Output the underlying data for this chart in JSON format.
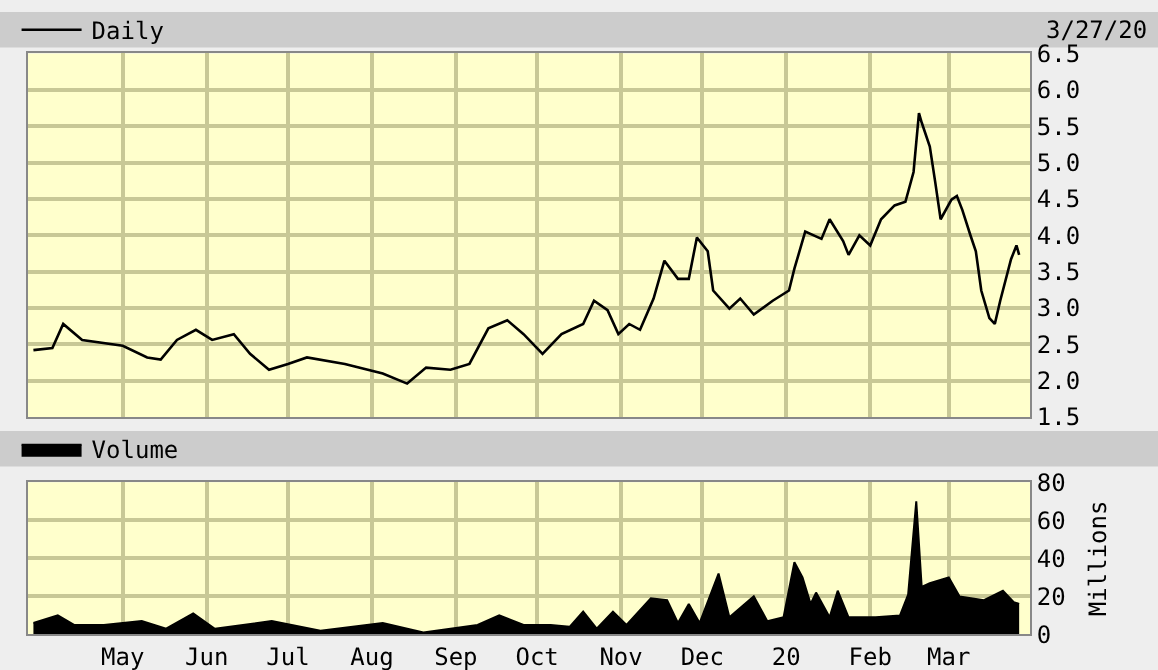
{
  "chart_data": [
    {
      "type": "line",
      "annotations": [
        "3/27/20"
      ],
      "x": [
        "2019-03-29",
        "2019-04-05",
        "2019-04-09",
        "2019-04-16",
        "2019-05-01",
        "2019-05-10",
        "2019-05-15",
        "2019-05-21",
        "2019-05-28",
        "2019-06-03",
        "2019-06-11",
        "2019-06-17",
        "2019-06-24",
        "2019-07-01",
        "2019-07-08",
        "2019-07-22",
        "2019-08-05",
        "2019-08-14",
        "2019-08-21",
        "2019-08-30",
        "2019-09-06",
        "2019-09-13",
        "2019-09-20",
        "2019-09-26",
        "2019-10-03",
        "2019-10-10",
        "2019-10-18",
        "2019-10-22",
        "2019-10-27",
        "2019-10-31",
        "2019-11-04",
        "2019-11-08",
        "2019-11-13",
        "2019-11-17",
        "2019-11-22",
        "2019-11-26",
        "2019-11-29",
        "2019-12-03",
        "2019-12-05",
        "2019-12-11",
        "2019-12-15",
        "2019-12-20",
        "2019-12-27",
        "2020-01-02",
        "2020-01-04",
        "2020-01-08",
        "2020-01-14",
        "2020-01-17",
        "2020-01-22",
        "2020-01-24",
        "2020-01-28",
        "2020-02-01",
        "2020-02-05",
        "2020-02-10",
        "2020-02-14",
        "2020-02-17",
        "2020-02-19",
        "2020-02-20",
        "2020-02-23",
        "2020-02-25",
        "2020-02-27",
        "2020-03-02",
        "2020-03-04",
        "2020-03-06",
        "2020-03-09",
        "2020-03-11",
        "2020-03-13",
        "2020-03-16",
        "2020-03-18",
        "2020-03-20",
        "2020-03-24",
        "2020-03-26",
        "2020-03-27"
      ],
      "series": [
        {
          "name": "Daily",
          "color": "#000000",
          "values": [
            2.42,
            2.45,
            2.78,
            2.56,
            2.48,
            2.32,
            2.29,
            2.56,
            2.7,
            2.56,
            2.64,
            2.37,
            2.15,
            2.23,
            2.32,
            2.23,
            2.1,
            1.96,
            2.18,
            2.15,
            2.23,
            2.72,
            2.83,
            2.64,
            2.37,
            2.64,
            2.78,
            3.1,
            2.97,
            2.64,
            2.78,
            2.7,
            3.13,
            3.65,
            3.4,
            3.4,
            3.97,
            3.78,
            3.24,
            2.99,
            3.13,
            2.91,
            3.1,
            3.24,
            3.54,
            4.05,
            3.95,
            4.22,
            3.92,
            3.73,
            4.0,
            3.86,
            4.22,
            4.41,
            4.46,
            4.87,
            5.68,
            5.55,
            5.22,
            4.73,
            4.22,
            4.49,
            4.54,
            4.35,
            4.0,
            3.78,
            3.24,
            2.86,
            2.78,
            3.1,
            3.67,
            3.86,
            3.73
          ]
        }
      ],
      "xlim": [
        "2019-03-27",
        "2020-03-31"
      ],
      "xticks": [
        {
          "value": "2019-05-01",
          "label": null
        },
        {
          "value": "2019-06-01",
          "label": null
        },
        {
          "value": "2019-07-01",
          "label": null
        },
        {
          "value": "2019-08-01",
          "label": null
        },
        {
          "value": "2019-09-01",
          "label": null
        },
        {
          "value": "2019-10-01",
          "label": null
        },
        {
          "value": "2019-11-01",
          "label": null
        },
        {
          "value": "2019-12-01",
          "label": null
        },
        {
          "value": "2020-01-01",
          "label": null
        },
        {
          "value": "2020-02-01",
          "label": null
        },
        {
          "value": "2020-03-01",
          "label": null
        }
      ],
      "ylim": [
        1.5,
        6.5
      ],
      "yticks": [
        1.5,
        {
          "value": 2,
          "label": "2.0"
        },
        2.5,
        {
          "value": 3,
          "label": "3.0"
        },
        3.5,
        {
          "value": 4,
          "label": "4.0"
        },
        4.5,
        {
          "value": 5,
          "label": "5.0"
        },
        5.5,
        {
          "value": 6,
          "label": "6.0"
        },
        6.5
      ],
      "grid": true,
      "legend": "top left",
      "tick_labels": "y"
    },
    {
      "type": "area",
      "ylabel": "Millions",
      "x": [
        "2019-03-29",
        "2019-04-07",
        "2019-04-13",
        "2019-04-24",
        "2019-05-08",
        "2019-05-17",
        "2019-05-27",
        "2019-06-04",
        "2019-06-25",
        "2019-07-13",
        "2019-08-05",
        "2019-08-20",
        "2019-09-09",
        "2019-09-17",
        "2019-09-26",
        "2019-10-06",
        "2019-10-13",
        "2019-10-18",
        "2019-10-23",
        "2019-10-29",
        "2019-11-03",
        "2019-11-12",
        "2019-11-18",
        "2019-11-22",
        "2019-11-26",
        "2019-11-30",
        "2019-12-07",
        "2019-12-11",
        "2019-12-20",
        "2019-12-25",
        "2019-12-31",
        "2020-01-04",
        "2020-01-07",
        "2020-01-10",
        "2020-01-12",
        "2020-01-17",
        "2020-01-20",
        "2020-01-24",
        "2020-02-03",
        "2020-02-12",
        "2020-02-15",
        "2020-02-18",
        "2020-02-20",
        "2020-02-23",
        "2020-03-01",
        "2020-03-05",
        "2020-03-14",
        "2020-03-21",
        "2020-03-25",
        "2020-03-27"
      ],
      "series": [
        {
          "name": "Volume",
          "color": "#000000",
          "values": [
            6,
            10,
            5,
            5,
            7,
            3,
            11,
            3,
            7,
            2,
            6,
            1,
            5,
            10,
            5,
            5,
            4,
            12,
            3,
            12,
            5,
            19,
            18,
            6,
            16,
            6,
            32,
            9,
            20,
            7,
            9,
            38,
            30,
            16,
            22,
            9,
            23,
            9,
            9,
            10,
            21,
            70,
            25,
            27,
            30,
            20,
            18,
            23,
            17,
            16
          ]
        }
      ],
      "xlim": [
        "2019-03-27",
        "2020-03-31"
      ],
      "xticks": [
        {
          "value": "2019-05-01",
          "label": "May"
        },
        {
          "value": "2019-06-01",
          "label": "Jun"
        },
        {
          "value": "2019-07-01",
          "label": "Jul"
        },
        {
          "value": "2019-08-01",
          "label": "Aug"
        },
        {
          "value": "2019-09-01",
          "label": "Sep"
        },
        {
          "value": "2019-10-01",
          "label": "Oct"
        },
        {
          "value": "2019-11-01",
          "label": "Nov"
        },
        {
          "value": "2019-12-01",
          "label": "Dec"
        },
        {
          "value": "2020-01-01",
          "label": "20"
        },
        {
          "value": "2020-02-01",
          "label": "Feb"
        },
        {
          "value": "2020-03-01",
          "label": "Mar"
        }
      ],
      "ylim": [
        0,
        80
      ],
      "yticks": [
        0,
        20,
        40,
        60,
        80
      ],
      "grid": true,
      "legend": "top left"
    }
  ]
}
